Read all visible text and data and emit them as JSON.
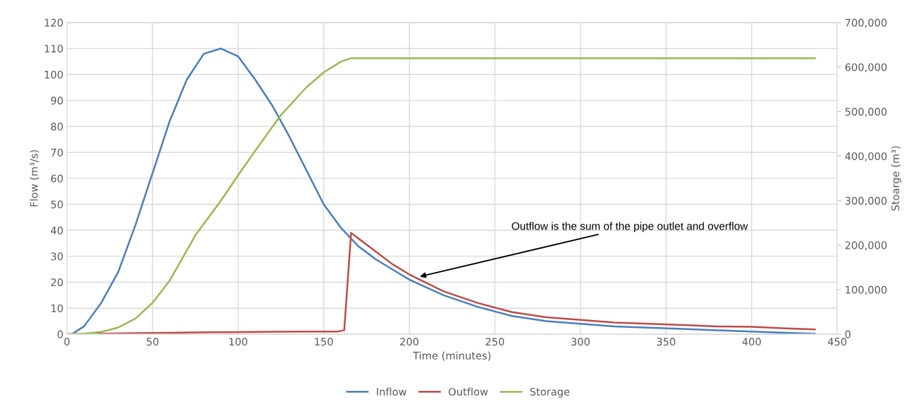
{
  "chart_data": {
    "type": "line",
    "xlabel": "Time (minutes)",
    "ylabel": "Flow (m³/s)",
    "y2label": "Stoarge (m³)",
    "xlim": [
      0,
      450
    ],
    "xticks": [
      0,
      50,
      100,
      150,
      200,
      250,
      300,
      350,
      400,
      450
    ],
    "ylim": [
      0,
      120
    ],
    "yticks": [
      0,
      10,
      20,
      30,
      40,
      50,
      60,
      70,
      80,
      90,
      100,
      110,
      120
    ],
    "y2lim": [
      0,
      700000
    ],
    "y2ticks": [
      0,
      {
        "value": 100000,
        "label": "100,000"
      },
      {
        "value": 200000,
        "label": "200,000"
      },
      {
        "value": 300000,
        "label": "300,000"
      },
      {
        "value": 400000,
        "label": "400,000"
      },
      {
        "value": 500000,
        "label": "500,000"
      },
      {
        "value": 600000,
        "label": "600,000"
      },
      {
        "value": 700000,
        "label": "700,000"
      }
    ],
    "grid": true,
    "legend": "bottom",
    "marker": "none",
    "line_style": "solid",
    "series": [
      {
        "name": "Inflow",
        "color": "#4a7ebb",
        "x": [
          4,
          10,
          20,
          30,
          40,
          50,
          60,
          70,
          80,
          90,
          100,
          110,
          120,
          130,
          140,
          150,
          160,
          170,
          180,
          190,
          200,
          220,
          240,
          260,
          280,
          300,
          320,
          340,
          360,
          380,
          400,
          420,
          437
        ],
        "values": [
          0.5,
          3,
          12,
          24,
          42,
          62,
          82,
          98,
          108,
          110,
          107,
          98,
          88,
          76,
          63,
          50,
          41,
          34,
          29,
          25,
          21,
          15,
          10.5,
          7,
          5,
          4,
          3,
          2.5,
          2,
          1.5,
          1,
          0.5,
          0.2
        ]
      },
      {
        "name": "Outflow",
        "color": "#be4b48",
        "x": [
          0,
          20,
          40,
          60,
          80,
          100,
          120,
          140,
          158,
          162,
          166,
          170,
          180,
          190,
          200,
          220,
          240,
          260,
          280,
          300,
          320,
          340,
          360,
          380,
          400,
          420,
          437
        ],
        "values": [
          0,
          0.2,
          0.4,
          0.5,
          0.7,
          0.8,
          0.9,
          1,
          1,
          1.5,
          39,
          37,
          32,
          27,
          23,
          16.5,
          12,
          8.5,
          6.5,
          5.5,
          4.5,
          4,
          3.5,
          3,
          2.8,
          2.2,
          1.8
        ]
      },
      {
        "name": "Storage",
        "color": "#98b954",
        "axis": "y2",
        "x": [
          0,
          10,
          20,
          30,
          40,
          50,
          60,
          75,
          90,
          100,
          110,
          125,
          140,
          150,
          160,
          166,
          437
        ],
        "values": [
          0,
          1000,
          5000,
          15000,
          35000,
          70500,
          120000,
          222000,
          300000,
          357000,
          412000,
          492000,
          555000,
          588000,
          612000,
          620000,
          620000
        ]
      }
    ],
    "annotations": [
      {
        "text": "Outflow is the sum of the pipe outlet and overflow",
        "x": 205,
        "y": 22
      }
    ]
  }
}
